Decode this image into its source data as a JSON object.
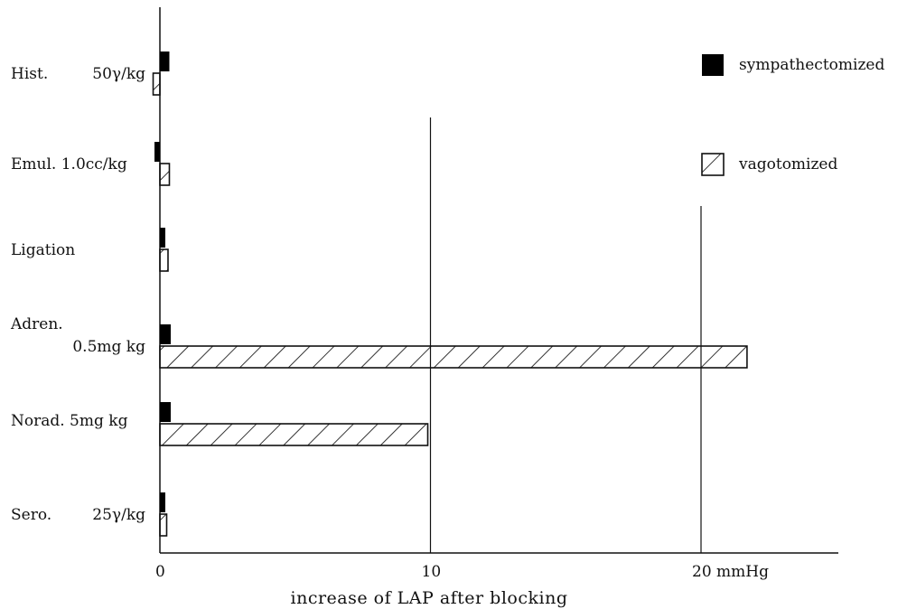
{
  "chart_data": {
    "type": "bar",
    "orientation": "horizontal",
    "categories": [
      [
        "Hist.",
        "50γ/kg"
      ],
      [
        "Emul. 1.0cc/kg"
      ],
      [
        "Ligation"
      ],
      [
        "Adren.",
        "0.5mg kg"
      ],
      [
        "Norad. 5mg kg"
      ],
      [
        "Sero.",
        "25γ/kg"
      ]
    ],
    "series": [
      {
        "name": "sympathectomized",
        "color": "#000000",
        "fill": "solid",
        "values": [
          0.35,
          -0.2,
          0.2,
          0.4,
          0.4,
          0.2
        ]
      },
      {
        "name": "vagotomized",
        "color": "#000000",
        "fill": "hatched",
        "values": [
          -0.25,
          0.35,
          0.3,
          21.7,
          9.9,
          0.25
        ]
      }
    ],
    "title": "",
    "xlabel": "increase of LAP after blocking",
    "xlim": [
      0,
      25
    ],
    "xticks": [
      {
        "value": 0,
        "label": "0"
      },
      {
        "value": 10,
        "label": "10"
      },
      {
        "value": 20,
        "label": "20 mmHg"
      }
    ],
    "grid": "vertical lines at 10 and 20",
    "legend_position": "top-right"
  }
}
